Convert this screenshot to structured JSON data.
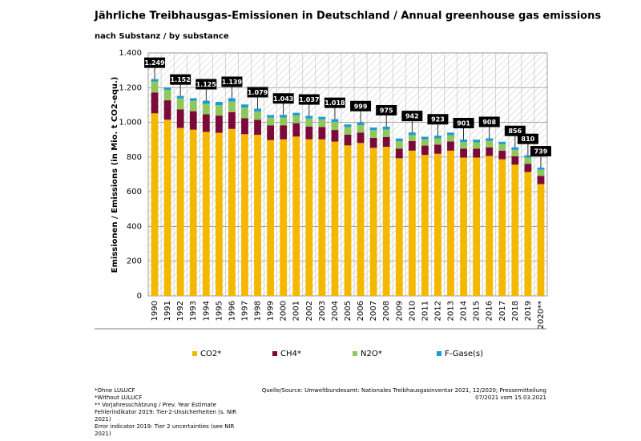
{
  "chart_data": {
    "type": "stacked_bar",
    "title": "Jährliche Treibhausgas-Emissionen in Deutschland / Annual greenhouse gas emissions",
    "subtitle": "nach Substanz / by substance",
    "y_label": "Emissionen / Emissions (in Mio. t CO2-equ.)",
    "categories": [
      "1990",
      "1991",
      "1992",
      "1993",
      "1994",
      "1995",
      "1996",
      "1997",
      "1998",
      "1999",
      "2000",
      "2001",
      "2002",
      "2003",
      "2004",
      "2005",
      "2006",
      "2007",
      "2008",
      "2009",
      "2010",
      "2011",
      "2012",
      "2013",
      "2014",
      "2015",
      "2016",
      "2017",
      "2018",
      "2019",
      "2020**"
    ],
    "series": [
      {
        "name": "CO2*",
        "color": "#f5b800",
        "values": [
          1052,
          1015,
          968,
          958,
          945,
          940,
          962,
          932,
          928,
          898,
          902,
          918,
          902,
          902,
          889,
          867,
          881,
          853,
          859,
          793,
          837,
          812,
          819,
          837,
          797,
          797,
          806,
          787,
          756,
          714,
          644
        ]
      },
      {
        "name": "CH4*",
        "color": "#7b0a3a",
        "values": [
          120,
          112,
          107,
          106,
          102,
          99,
          97,
          92,
          87,
          85,
          81,
          77,
          74,
          71,
          67,
          62,
          60,
          58,
          57,
          56,
          55,
          54,
          53,
          53,
          52,
          51,
          50,
          50,
          49,
          47,
          47
        ]
      },
      {
        "name": "N2O*",
        "color": "#8fc85a",
        "values": [
          64,
          60,
          63,
          60,
          60,
          60,
          61,
          61,
          48,
          44,
          45,
          45,
          46,
          44,
          47,
          44,
          43,
          44,
          43,
          42,
          34,
          36,
          36,
          36,
          37,
          37,
          37,
          37,
          37,
          36,
          36
        ]
      },
      {
        "name": "F-Gase(s)",
        "color": "#1a9bd7",
        "values": [
          13,
          13,
          14,
          15,
          18,
          19,
          19,
          18,
          16,
          15,
          15,
          15,
          15,
          15,
          15,
          15,
          15,
          15,
          16,
          16,
          16,
          15,
          15,
          15,
          15,
          15,
          15,
          14,
          14,
          13,
          12
        ]
      }
    ],
    "totals": {
      "values": [
        1249,
        null,
        1152,
        null,
        1125,
        null,
        1139,
        null,
        1079,
        null,
        1043,
        null,
        1037,
        null,
        1018,
        null,
        999,
        null,
        975,
        null,
        942,
        null,
        923,
        null,
        901,
        null,
        908,
        null,
        856,
        810,
        739
      ],
      "value_labels": [
        "1.249",
        null,
        "1.152",
        null,
        "1.125",
        null,
        "1.139",
        null,
        "1.079",
        null,
        "1.043",
        null,
        "1.037",
        null,
        "1.018",
        null,
        "999",
        null,
        "975",
        null,
        "942",
        null,
        "923",
        null,
        "901",
        null,
        "908",
        null,
        "856",
        "810",
        "739"
      ]
    },
    "ylim": [
      0,
      1400
    ],
    "yticks": [
      0,
      200,
      400,
      600,
      800,
      {
        "value": 1000,
        "label": "1.000"
      },
      {
        "value": 1200,
        "label": "1.200"
      },
      {
        "value": 1400,
        "label": "1.400"
      }
    ],
    "grid": true,
    "notes": [
      "*Ohne LULUCF",
      "*Without LULUCF",
      "** Vorjahresschätzung / Prev. Year Estimate",
      "Fehlerindikator 2019: Tier-2-Unsicherheiten (s. NIR",
      "2021)",
      "Error indicator 2019: Tier 2 uncertainties (see NIR",
      "2021)"
    ],
    "source": [
      "Quelle/Source: Umweltbundesamt: Nationales Treibhausgasinventar 2021, 12/2020; Pressemitteilung",
      "07/2021 vom 15.03.2021"
    ]
  }
}
